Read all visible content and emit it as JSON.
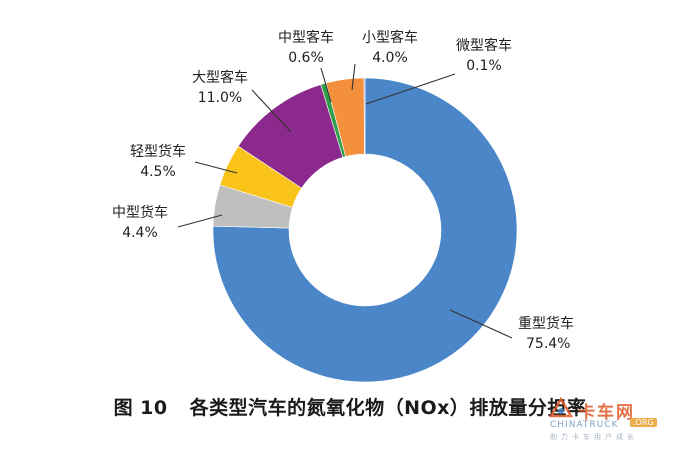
{
  "chart_data": {
    "type": "pie",
    "donut": true,
    "title": "各类型汽车的氮氧化物（NOx）排放量分担率",
    "figure_number": "图 10",
    "start_angle_deg": 0,
    "direction": "clockwise",
    "slices": [
      {
        "label": "重型货车",
        "value": 75.4,
        "value_label": "75.4%",
        "color": "#4a86c8"
      },
      {
        "label": "中型货车",
        "value": 4.4,
        "value_label": "4.4%",
        "color": "#bfbfbf"
      },
      {
        "label": "轻型货车",
        "value": 4.5,
        "value_label": "4.5%",
        "color": "#f9c31a"
      },
      {
        "label": "大型客车",
        "value": 11.0,
        "value_label": "11.0%",
        "color": "#8b2a8c"
      },
      {
        "label": "中型客车",
        "value": 0.6,
        "value_label": "0.6%",
        "color": "#2e9e48"
      },
      {
        "label": "小型客车",
        "value": 4.0,
        "value_label": "4.0%",
        "color": "#f48f3e"
      },
      {
        "label": "微型客车",
        "value": 0.1,
        "value_label": "0.1%",
        "color": "#3a5fa8"
      }
    ]
  },
  "watermark": {
    "title": "卡车网",
    "site": "CHINATRUCK",
    "badge": ".ORG",
    "slogan": "助力卡车用户成长"
  }
}
